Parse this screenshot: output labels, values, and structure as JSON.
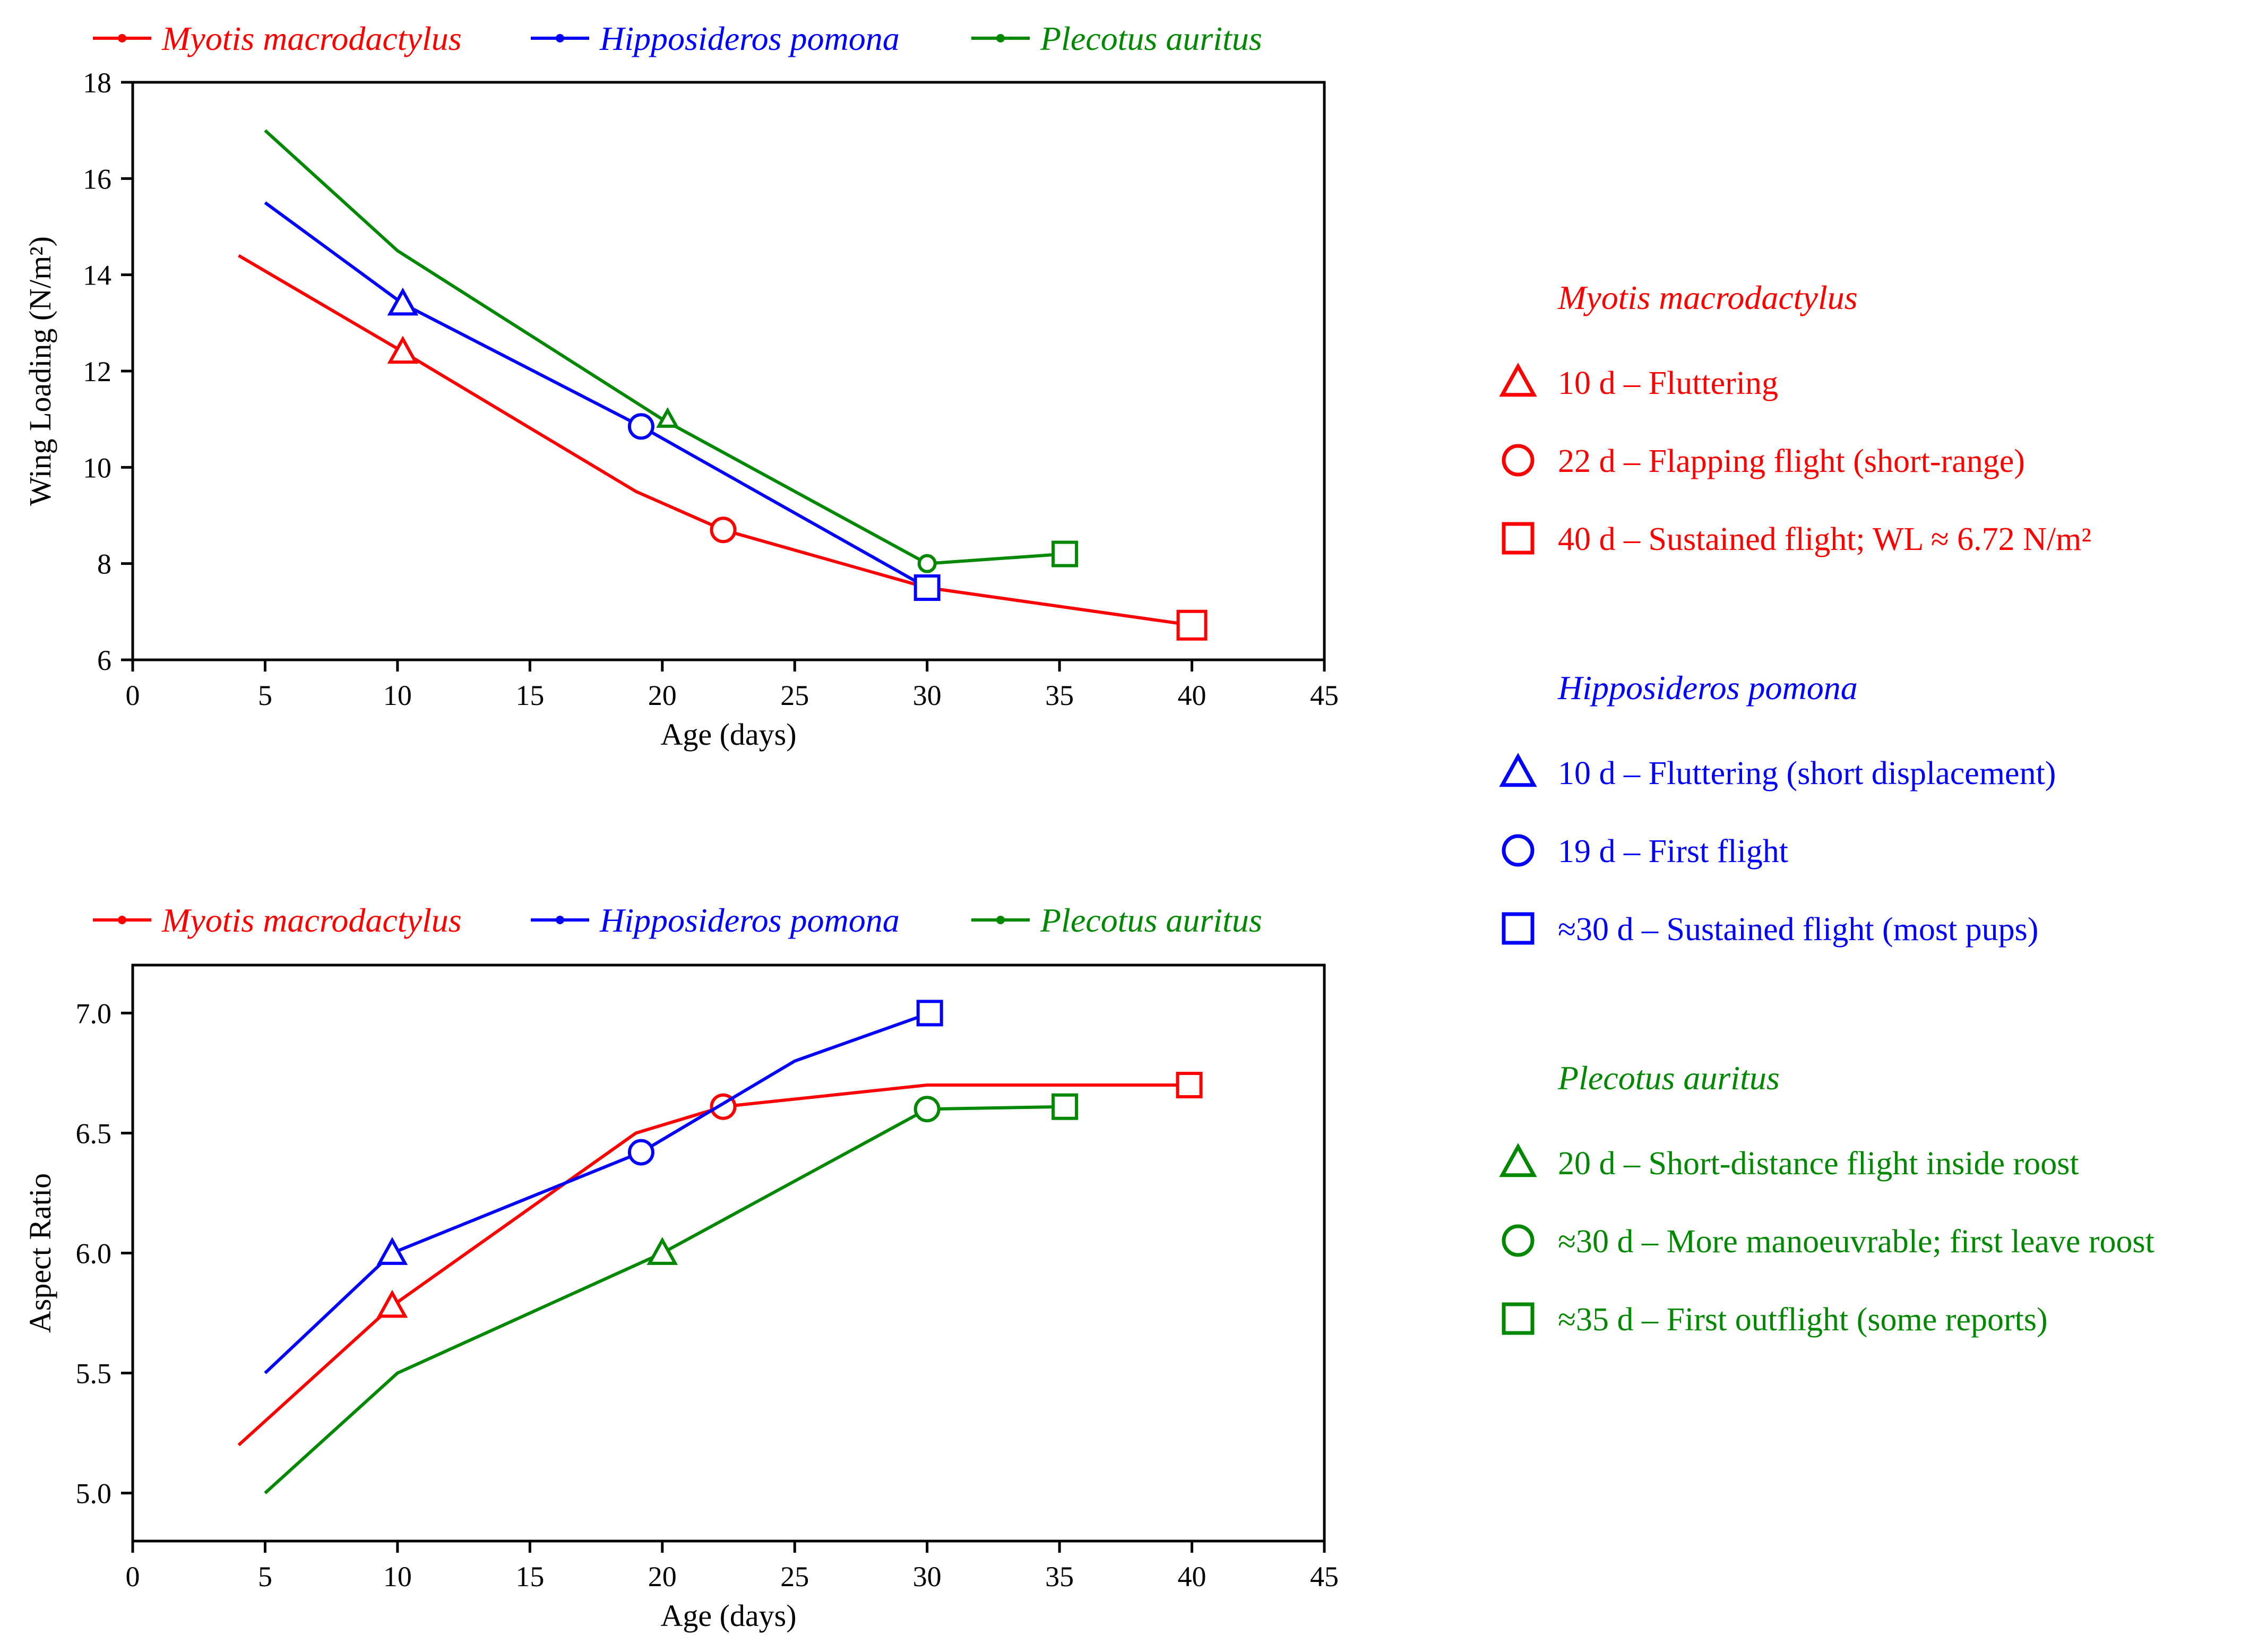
{
  "colors": {
    "myotis": "#ff0000",
    "hipposideros": "#0000ff",
    "plecotus": "#008800",
    "axis": "#000000"
  },
  "series_legend": [
    {
      "key": "myotis",
      "name": "Myotis macrodactylus"
    },
    {
      "key": "hipposideros",
      "name": "Hipposideros pomona"
    },
    {
      "key": "plecotus",
      "name": "Plecotus auritus"
    }
  ],
  "chart_data": [
    {
      "id": "wing-loading",
      "type": "line",
      "title": "",
      "xlabel": "Age (days)",
      "ylabel": "Wing Loading (N/m²)",
      "xlim": [
        0,
        45
      ],
      "ylim": [
        6,
        18
      ],
      "xticks": [
        0,
        5,
        10,
        15,
        20,
        25,
        30,
        35,
        40,
        45
      ],
      "yticks": [
        6,
        8,
        10,
        12,
        14,
        16,
        18
      ],
      "ytick_decimals": 0,
      "series": [
        {
          "key": "myotis",
          "name": "Myotis macrodactylus",
          "points": [
            [
              4,
              14.4
            ],
            [
              10.2,
              12.4
            ],
            [
              19,
              9.5
            ],
            [
              22.3,
              8.7
            ],
            [
              30,
              7.5
            ],
            [
              40,
              6.72
            ]
          ],
          "markers": [
            {
              "x": 10.2,
              "y": 12.4,
              "shape": "triangle",
              "size": "small"
            },
            {
              "x": 22.3,
              "y": 8.7,
              "shape": "circle",
              "size": "small"
            },
            {
              "x": 40,
              "y": 6.72,
              "shape": "square",
              "size": "large"
            }
          ]
        },
        {
          "key": "hipposideros",
          "name": "Hipposideros pomona",
          "points": [
            [
              5,
              15.5
            ],
            [
              10.2,
              13.4
            ],
            [
              19.2,
              10.85
            ],
            [
              30,
              7.5
            ]
          ],
          "markers": [
            {
              "x": 10.2,
              "y": 13.4,
              "shape": "triangle",
              "size": "small"
            },
            {
              "x": 19.2,
              "y": 10.85,
              "shape": "circle",
              "size": "small"
            },
            {
              "x": 30,
              "y": 7.5,
              "shape": "square",
              "size": "small"
            }
          ]
        },
        {
          "key": "plecotus",
          "name": "Plecotus auritus",
          "points": [
            [
              5,
              17.0
            ],
            [
              10,
              14.5
            ],
            [
              20,
              11.0
            ],
            [
              30,
              8.0
            ],
            [
              35.2,
              8.2
            ]
          ],
          "markers": [
            {
              "x": 20.2,
              "y": 11.0,
              "shape": "triangle",
              "size": "tiny"
            },
            {
              "x": 30,
              "y": 8.0,
              "shape": "circle",
              "size": "tiny"
            },
            {
              "x": 35.2,
              "y": 8.2,
              "shape": "square",
              "size": "small"
            }
          ]
        }
      ]
    },
    {
      "id": "aspect-ratio",
      "type": "line",
      "title": "",
      "xlabel": "Age (days)",
      "ylabel": "Aspect Ratio",
      "xlim": [
        0,
        45
      ],
      "ylim": [
        4.8,
        7.2
      ],
      "xticks": [
        0,
        5,
        10,
        15,
        20,
        25,
        30,
        35,
        40,
        45
      ],
      "yticks": [
        5.0,
        5.5,
        6.0,
        6.5,
        7.0
      ],
      "ytick_decimals": 1,
      "series": [
        {
          "key": "myotis",
          "name": "Myotis macrodactylus",
          "points": [
            [
              4,
              5.2
            ],
            [
              9.8,
              5.78
            ],
            [
              19,
              6.5
            ],
            [
              22.3,
              6.61
            ],
            [
              30,
              6.7
            ],
            [
              40,
              6.7
            ]
          ],
          "markers": [
            {
              "x": 9.8,
              "y": 5.78,
              "shape": "triangle",
              "size": "small"
            },
            {
              "x": 22.3,
              "y": 6.61,
              "shape": "circle",
              "size": "small"
            },
            {
              "x": 39.9,
              "y": 6.7,
              "shape": "square",
              "size": "small"
            }
          ]
        },
        {
          "key": "hipposideros",
          "name": "Hipposideros pomona",
          "points": [
            [
              5,
              5.5
            ],
            [
              9.8,
              6.0
            ],
            [
              19.2,
              6.42
            ],
            [
              25,
              6.8
            ],
            [
              30.1,
              7.0
            ]
          ],
          "markers": [
            {
              "x": 9.8,
              "y": 6.0,
              "shape": "triangle",
              "size": "small"
            },
            {
              "x": 19.2,
              "y": 6.42,
              "shape": "circle",
              "size": "small"
            },
            {
              "x": 30.1,
              "y": 7.0,
              "shape": "square",
              "size": "small"
            }
          ]
        },
        {
          "key": "plecotus",
          "name": "Plecotus auritus",
          "points": [
            [
              5,
              5.0
            ],
            [
              10,
              5.5
            ],
            [
              20,
              6.0
            ],
            [
              30,
              6.6
            ],
            [
              35.2,
              6.61
            ]
          ],
          "markers": [
            {
              "x": 20,
              "y": 6.0,
              "shape": "triangle",
              "size": "small"
            },
            {
              "x": 30,
              "y": 6.6,
              "shape": "circle",
              "size": "small"
            },
            {
              "x": 35.2,
              "y": 6.61,
              "shape": "square",
              "size": "small"
            }
          ]
        }
      ]
    }
  ],
  "annotation_legend": [
    {
      "key": "myotis",
      "title": "Myotis macrodactylus",
      "items": [
        {
          "shape": "triangle",
          "text": "10 d – Fluttering"
        },
        {
          "shape": "circle",
          "text": "22 d – Flapping flight (short-range)"
        },
        {
          "shape": "square",
          "text": "40 d – Sustained flight; WL ≈ 6.72 N/m²"
        }
      ]
    },
    {
      "key": "hipposideros",
      "title": "Hipposideros pomona",
      "items": [
        {
          "shape": "triangle",
          "text": "10 d – Fluttering (short displacement)"
        },
        {
          "shape": "circle",
          "text": "19 d – First flight"
        },
        {
          "shape": "square",
          "text": "≈30 d – Sustained flight (most pups)"
        }
      ]
    },
    {
      "key": "plecotus",
      "title": "Plecotus auritus",
      "items": [
        {
          "shape": "triangle",
          "text": "20 d – Short-distance flight inside roost"
        },
        {
          "shape": "circle",
          "text": "≈30 d – More manoeuvrable; first leave roost"
        },
        {
          "shape": "square",
          "text": "≈35 d – First outflight (some reports)"
        }
      ]
    }
  ]
}
